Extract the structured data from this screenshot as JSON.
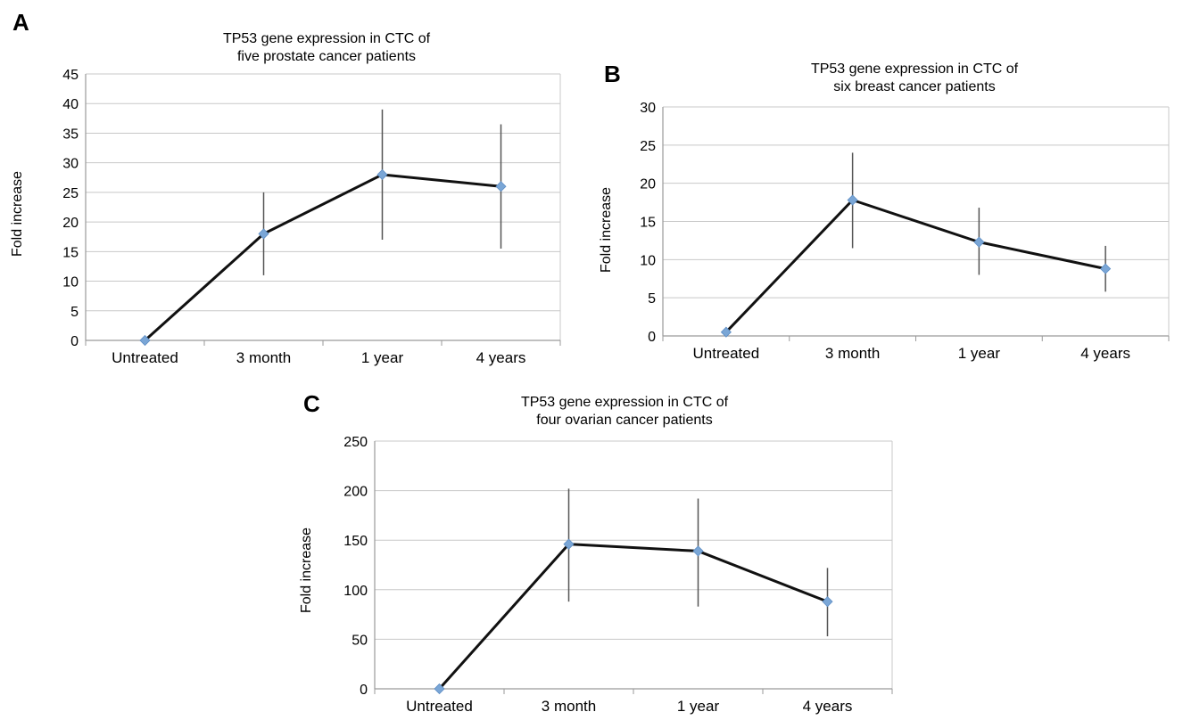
{
  "figure": {
    "panels": [
      {
        "letter": "A"
      },
      {
        "letter": "B"
      },
      {
        "letter": "C"
      }
    ]
  },
  "chart_data": [
    {
      "type": "line",
      "title": "TP53 gene expression in CTC of five prostate cancer patients",
      "title_lines": [
        "TP53 gene expression in CTC of",
        "five prostate cancer patients"
      ],
      "xlabel": "",
      "ylabel": "Fold increase",
      "categories": [
        "Untreated",
        "3 month",
        "1 year",
        "4 years"
      ],
      "ylim": [
        0,
        45
      ],
      "yticks": [
        0,
        5,
        10,
        15,
        20,
        25,
        30,
        35,
        40,
        45
      ],
      "grid": true,
      "series": [
        {
          "values": [
            0,
            18,
            28,
            26
          ],
          "error_low": [
            0,
            11,
            17,
            15.5
          ],
          "error_high": [
            0,
            25,
            39,
            36.5
          ]
        }
      ],
      "colors": {
        "line": "#111111",
        "marker": "#7aa6d6",
        "errorbar": "#555555",
        "grid": "#c8c8c8"
      }
    },
    {
      "type": "line",
      "title": "TP53 gene expression in CTC of six breast cancer patients",
      "title_lines": [
        "TP53 gene expression in CTC of",
        "six breast cancer patients"
      ],
      "xlabel": "",
      "ylabel": "Fold increase",
      "categories": [
        "Untreated",
        "3 month",
        "1 year",
        "4 years"
      ],
      "ylim": [
        0,
        30
      ],
      "yticks": [
        0,
        5,
        10,
        15,
        20,
        25,
        30
      ],
      "grid": true,
      "series": [
        {
          "values": [
            0.5,
            17.8,
            12.3,
            8.8
          ],
          "error_low": [
            0.5,
            11.5,
            8,
            5.8
          ],
          "error_high": [
            0.5,
            24,
            16.8,
            11.8
          ]
        }
      ],
      "colors": {
        "line": "#111111",
        "marker": "#7aa6d6",
        "errorbar": "#555555",
        "grid": "#c8c8c8"
      }
    },
    {
      "type": "line",
      "title": "TP53 gene expression in CTC of four ovarian cancer patients",
      "title_lines": [
        "TP53 gene expression in CTC of",
        "four ovarian cancer patients"
      ],
      "xlabel": "",
      "ylabel": "Fold increase",
      "categories": [
        "Untreated",
        "3 month",
        "1 year",
        "4 years"
      ],
      "ylim": [
        0,
        250
      ],
      "yticks": [
        0,
        50,
        100,
        150,
        200,
        250
      ],
      "grid": true,
      "series": [
        {
          "values": [
            0,
            146,
            139,
            88
          ],
          "error_low": [
            0,
            88,
            83,
            53
          ],
          "error_high": [
            0,
            202,
            192,
            122
          ]
        }
      ],
      "colors": {
        "line": "#111111",
        "marker": "#7aa6d6",
        "errorbar": "#555555",
        "grid": "#c8c8c8"
      }
    }
  ]
}
